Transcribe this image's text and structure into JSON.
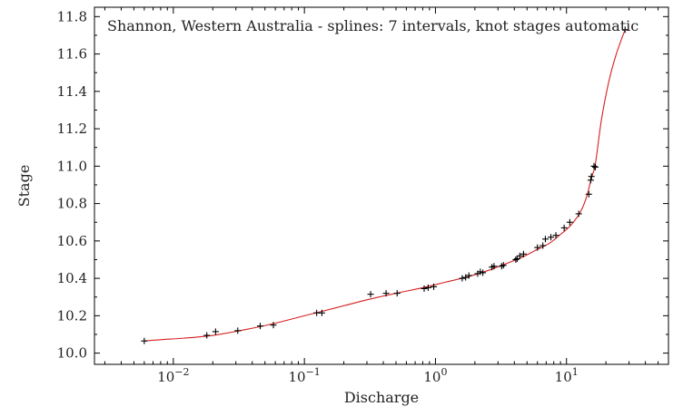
{
  "chart_data": {
    "type": "scatter",
    "title": "Shannon, Western Australia - splines: 7 intervals, knot stages automatic",
    "xlabel": "Discharge",
    "ylabel": "Stage",
    "xscale": "log",
    "xlim": [
      0.0025,
      60
    ],
    "ylim": [
      9.94,
      11.85
    ],
    "grid": false,
    "legend": "none",
    "x_ticks": [
      {
        "value": 0.01,
        "base": "10",
        "exp": "−2"
      },
      {
        "value": 0.1,
        "base": "10",
        "exp": "−1"
      },
      {
        "value": 1,
        "base": "10",
        "exp": "0"
      },
      {
        "value": 10,
        "base": "10",
        "exp": "1"
      }
    ],
    "y_ticks": [
      "10.0",
      "10.2",
      "10.4",
      "10.6",
      "10.8",
      "11.0",
      "11.2",
      "11.4",
      "11.6",
      "11.8"
    ],
    "colors": {
      "points": "#000000",
      "curve": "#d62020"
    },
    "series": [
      {
        "kind": "observations",
        "x": [
          0.006,
          0.018,
          0.021,
          0.031,
          0.046,
          0.058,
          0.124,
          0.136,
          0.32,
          0.42,
          0.51,
          0.82,
          0.88,
          0.97,
          1.6,
          1.7,
          1.8,
          2.1,
          2.2,
          2.3,
          2.7,
          2.8,
          3.2,
          3.3,
          4.1,
          4.2,
          4.4,
          4.7,
          6.0,
          6.6,
          6.9,
          7.6,
          8.3,
          9.6,
          10.6,
          12.4,
          14.8,
          15.3,
          15.5,
          16.2,
          16.6,
          28.0
        ],
        "y": [
          10.065,
          10.095,
          10.115,
          10.12,
          10.145,
          10.15,
          10.215,
          10.215,
          10.315,
          10.32,
          10.32,
          10.345,
          10.35,
          10.355,
          10.4,
          10.405,
          10.415,
          10.425,
          10.435,
          10.43,
          10.46,
          10.465,
          10.465,
          10.47,
          10.5,
          10.505,
          10.52,
          10.53,
          10.565,
          10.575,
          10.61,
          10.62,
          10.63,
          10.67,
          10.7,
          10.745,
          10.85,
          10.925,
          10.945,
          11.0,
          10.995,
          11.73
        ]
      },
      {
        "kind": "fitted-curve",
        "x": [
          0.006,
          0.008,
          0.012,
          0.02,
          0.035,
          0.06,
          0.1,
          0.18,
          0.3,
          0.5,
          0.8,
          1.2,
          1.8,
          2.6,
          3.5,
          4.5,
          6.0,
          7.5,
          9.0,
          10.5,
          12.0,
          13.2,
          14.3,
          15.1,
          15.8,
          16.4,
          17.0,
          18.5,
          21.0,
          24.0,
          28.0
        ],
        "y": [
          10.065,
          10.072,
          10.08,
          10.095,
          10.125,
          10.16,
          10.2,
          10.245,
          10.285,
          10.32,
          10.35,
          10.38,
          10.41,
          10.445,
          10.48,
          10.51,
          10.555,
          10.59,
          10.635,
          10.675,
          10.725,
          10.775,
          10.84,
          10.905,
          10.955,
          10.99,
          11.06,
          11.25,
          11.45,
          11.6,
          11.73
        ]
      }
    ]
  }
}
